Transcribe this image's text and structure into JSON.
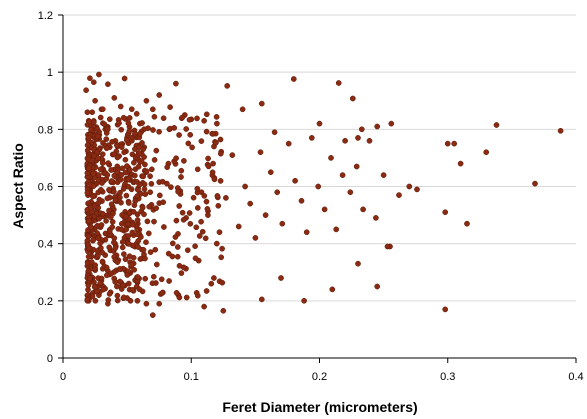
{
  "chart_data": {
    "type": "scatter",
    "title": "",
    "xlabel": "Feret Diameter (micrometers)",
    "ylabel": "Aspect Ratio",
    "xlim": [
      0,
      0.4
    ],
    "ylim": [
      0,
      1.2
    ],
    "x_ticks": [
      "0",
      "0.1",
      "0.2",
      "0.3",
      "0.4"
    ],
    "y_ticks": [
      "0",
      "0.2",
      "0.4",
      "0.6",
      "0.8",
      "1",
      "1.2"
    ],
    "grid": true,
    "legend": "none",
    "marker_color": "#8b2a12",
    "marker_edge_color": "#5a1a08",
    "series": [
      {
        "points": [
          [
            0.018,
            0.937
          ],
          [
            0.021,
            0.979
          ],
          [
            0.024,
            0.965
          ],
          [
            0.028,
            0.992
          ],
          [
            0.035,
            0.958
          ],
          [
            0.048,
            0.978
          ],
          [
            0.088,
            0.96
          ],
          [
            0.128,
            0.952
          ],
          [
            0.18,
            0.976
          ],
          [
            0.215,
            0.962
          ],
          [
            0.226,
            0.908
          ],
          [
            0.019,
            0.86
          ],
          [
            0.02,
            0.83
          ],
          [
            0.022,
            0.81
          ],
          [
            0.025,
            0.9
          ],
          [
            0.03,
            0.87
          ],
          [
            0.033,
            0.8
          ],
          [
            0.04,
            0.91
          ],
          [
            0.045,
            0.88
          ],
          [
            0.052,
            0.84
          ],
          [
            0.06,
            0.82
          ],
          [
            0.065,
            0.9
          ],
          [
            0.07,
            0.87
          ],
          [
            0.075,
            0.92
          ],
          [
            0.083,
            0.8
          ],
          [
            0.095,
            0.85
          ],
          [
            0.1,
            0.835
          ],
          [
            0.11,
            0.83
          ],
          [
            0.12,
            0.82
          ],
          [
            0.14,
            0.87
          ],
          [
            0.155,
            0.89
          ],
          [
            0.165,
            0.79
          ],
          [
            0.2,
            0.82
          ],
          [
            0.233,
            0.8
          ],
          [
            0.245,
            0.81
          ],
          [
            0.256,
            0.82
          ],
          [
            0.338,
            0.815
          ],
          [
            0.388,
            0.795
          ],
          [
            0.22,
            0.76
          ],
          [
            0.23,
            0.77
          ],
          [
            0.068,
            0.58
          ],
          [
            0.081,
            0.61
          ],
          [
            0.096,
            0.49
          ],
          [
            0.105,
            0.66
          ],
          [
            0.108,
            0.58
          ],
          [
            0.113,
            0.5
          ],
          [
            0.118,
            0.63
          ],
          [
            0.122,
            0.44
          ],
          [
            0.127,
            0.56
          ],
          [
            0.132,
            0.71
          ],
          [
            0.137,
            0.46
          ],
          [
            0.142,
            0.6
          ],
          [
            0.146,
            0.54
          ],
          [
            0.15,
            0.42
          ],
          [
            0.154,
            0.72
          ],
          [
            0.158,
            0.5
          ],
          [
            0.162,
            0.65
          ],
          [
            0.167,
            0.58
          ],
          [
            0.171,
            0.47
          ],
          [
            0.176,
            0.75
          ],
          [
            0.181,
            0.62
          ],
          [
            0.186,
            0.55
          ],
          [
            0.19,
            0.44
          ],
          [
            0.194,
            0.77
          ],
          [
            0.199,
            0.6
          ],
          [
            0.204,
            0.52
          ],
          [
            0.209,
            0.7
          ],
          [
            0.213,
            0.45
          ],
          [
            0.218,
            0.64
          ],
          [
            0.224,
            0.58
          ],
          [
            0.229,
            0.67
          ],
          [
            0.234,
            0.52
          ],
          [
            0.239,
            0.76
          ],
          [
            0.244,
            0.49
          ],
          [
            0.25,
            0.64
          ],
          [
            0.255,
            0.39
          ],
          [
            0.262,
            0.57
          ],
          [
            0.27,
            0.6
          ],
          [
            0.276,
            0.59
          ],
          [
            0.3,
            0.75
          ],
          [
            0.305,
            0.75
          ],
          [
            0.31,
            0.68
          ],
          [
            0.315,
            0.47
          ],
          [
            0.33,
            0.72
          ],
          [
            0.368,
            0.61
          ],
          [
            0.298,
            0.51
          ],
          [
            0.028,
            0.22
          ],
          [
            0.035,
            0.19
          ],
          [
            0.042,
            0.25
          ],
          [
            0.05,
            0.21
          ],
          [
            0.058,
            0.2
          ],
          [
            0.065,
            0.19
          ],
          [
            0.07,
            0.15
          ],
          [
            0.075,
            0.19
          ],
          [
            0.09,
            0.22
          ],
          [
            0.11,
            0.18
          ],
          [
            0.125,
            0.165
          ],
          [
            0.155,
            0.205
          ],
          [
            0.188,
            0.2
          ],
          [
            0.21,
            0.24
          ],
          [
            0.23,
            0.33
          ],
          [
            0.245,
            0.25
          ],
          [
            0.298,
            0.17
          ],
          [
            0.253,
            0.39
          ],
          [
            0.17,
            0.28
          ]
        ]
      }
    ]
  }
}
